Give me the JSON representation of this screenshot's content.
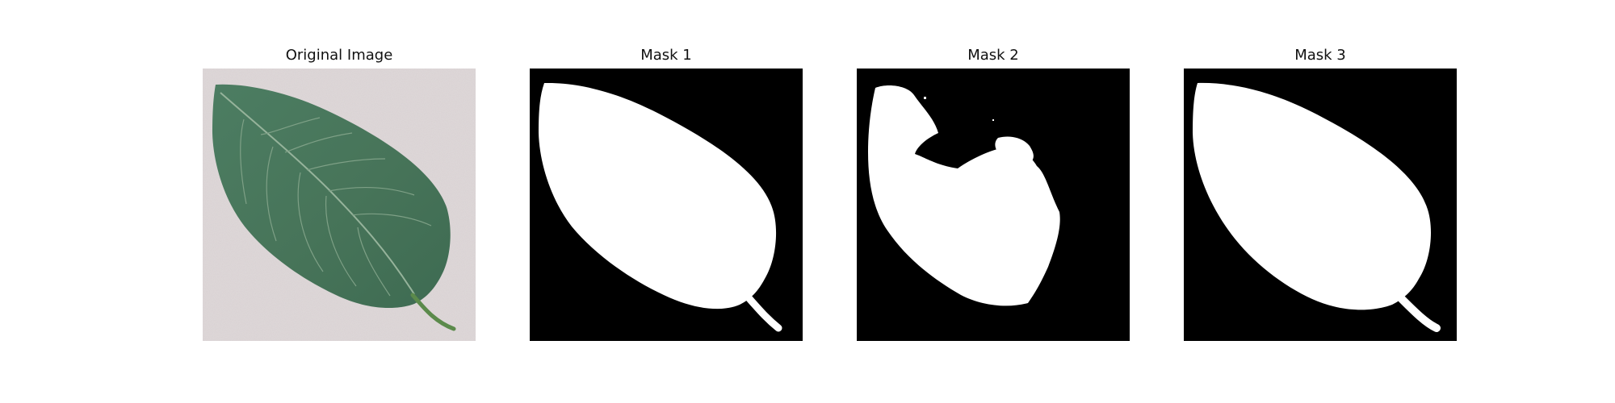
{
  "panels": [
    {
      "title": "Original Image",
      "kind": "photo"
    },
    {
      "title": "Mask 1",
      "kind": "mask"
    },
    {
      "title": "Mask 2",
      "kind": "mask"
    },
    {
      "title": "Mask 3",
      "kind": "mask"
    }
  ],
  "colors": {
    "background": "#d9d2d3",
    "leaf": "#4a7a5d",
    "leaf_dark": "#3f6d52",
    "vein": "#9ab59f",
    "stem": "#5d8a4b",
    "mask_background": "#000000",
    "mask_foreground": "#ffffff"
  }
}
